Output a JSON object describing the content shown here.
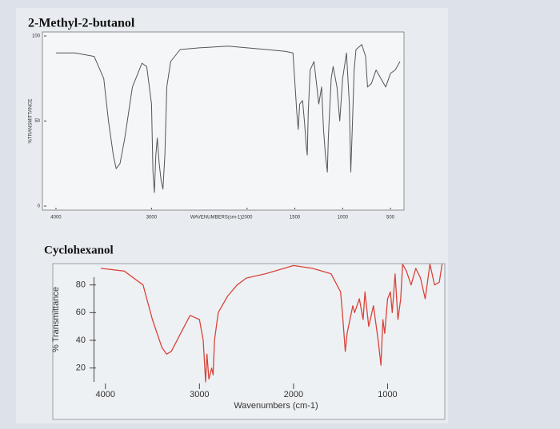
{
  "chart_data": [
    {
      "type": "line",
      "title": "2-Methyl-2-butanol",
      "xlabel": "WAVENUMBERS(cm-1)",
      "ylabel": "%TRANSMITTANCE",
      "color": "#555555",
      "xlim": [
        4100,
        400
      ],
      "xticks": [
        4000,
        3000,
        2000,
        1500,
        1000,
        500
      ],
      "ylim": [
        0,
        100
      ],
      "yticks": [
        0,
        50,
        100
      ],
      "frame": true,
      "x": [
        4000,
        3800,
        3600,
        3500,
        3450,
        3400,
        3370,
        3330,
        3280,
        3200,
        3100,
        3050,
        3000,
        2985,
        2970,
        2955,
        2940,
        2920,
        2900,
        2880,
        2860,
        2840,
        2800,
        2700,
        2500,
        2200,
        2000,
        1800,
        1600,
        1520,
        1480,
        1465,
        1450,
        1420,
        1400,
        1380,
        1370,
        1360,
        1340,
        1300,
        1250,
        1220,
        1200,
        1180,
        1160,
        1150,
        1120,
        1100,
        1060,
        1030,
        1000,
        960,
        930,
        915,
        900,
        880,
        860,
        800,
        760,
        740,
        700,
        650,
        600,
        550,
        500,
        450,
        400
      ],
      "values": [
        90,
        90,
        88,
        75,
        50,
        30,
        22,
        25,
        40,
        70,
        84,
        82,
        60,
        20,
        8,
        30,
        40,
        25,
        15,
        10,
        30,
        70,
        85,
        92,
        93,
        94,
        93,
        92,
        91,
        90,
        55,
        45,
        60,
        62,
        50,
        35,
        30,
        55,
        80,
        85,
        60,
        70,
        45,
        30,
        20,
        40,
        75,
        82,
        70,
        50,
        75,
        90,
        60,
        20,
        45,
        80,
        92,
        95,
        88,
        70,
        72,
        80,
        75,
        70,
        78,
        80,
        85
      ]
    },
    {
      "type": "line",
      "title": "Cyclohexanol",
      "xlabel": "Wavenumbers (cm-1)",
      "ylabel": "% Transmittance",
      "color": "#d9443a",
      "xlim": [
        4100,
        400
      ],
      "xticks": [
        4000,
        3000,
        2000,
        1000
      ],
      "ylim": [
        10,
        100
      ],
      "yticks": [
        20,
        40,
        60,
        80
      ],
      "frame": false,
      "x": [
        4050,
        3800,
        3600,
        3500,
        3400,
        3350,
        3300,
        3200,
        3100,
        3000,
        2960,
        2935,
        2920,
        2900,
        2870,
        2855,
        2840,
        2800,
        2700,
        2600,
        2500,
        2300,
        2100,
        2000,
        1900,
        1800,
        1700,
        1600,
        1500,
        1480,
        1450,
        1430,
        1400,
        1370,
        1350,
        1300,
        1260,
        1240,
        1200,
        1150,
        1100,
        1070,
        1050,
        1030,
        1000,
        970,
        950,
        920,
        890,
        860,
        840,
        800,
        750,
        700,
        650,
        600,
        550,
        500,
        450,
        420
      ],
      "values": [
        92,
        90,
        80,
        55,
        35,
        30,
        32,
        45,
        58,
        55,
        40,
        10,
        30,
        12,
        20,
        15,
        40,
        60,
        72,
        80,
        85,
        88,
        92,
        94,
        93,
        92,
        90,
        88,
        75,
        60,
        32,
        45,
        55,
        65,
        60,
        70,
        55,
        75,
        50,
        65,
        40,
        22,
        55,
        45,
        70,
        75,
        60,
        88,
        55,
        70,
        95,
        90,
        80,
        92,
        85,
        70,
        95,
        80,
        82,
        95
      ]
    }
  ]
}
